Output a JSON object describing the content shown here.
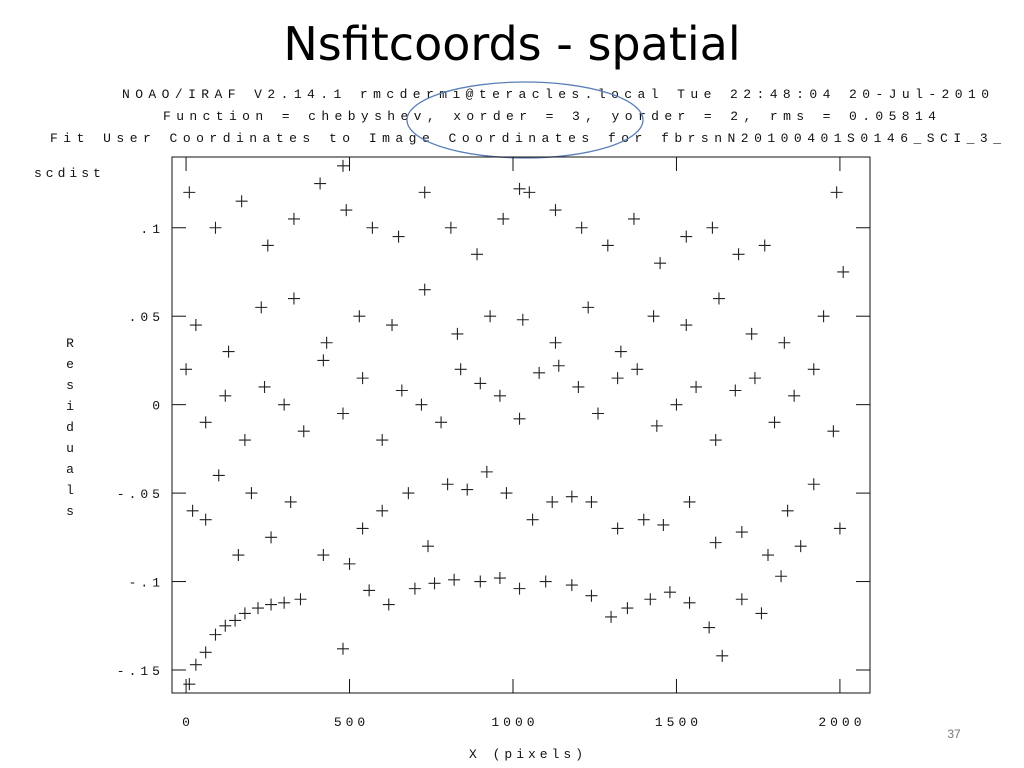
{
  "slide": {
    "title": "Nsfitcoords - spatial",
    "page_number": "37"
  },
  "chart_data": {
    "type": "scatter",
    "header_lines": [
      "NOAO/IRAF V2.14.1 rmcdermi@teracles.local Tue 22:48:04 20-Jul-2010",
      "Function = chebyshev, xorder = 3, yorder = 2, rms = 0.05814",
      "Fit User Coordinates to Image Coordinates for fbrsnN20100401S0146_SCI_3_"
    ],
    "y_axis_title": "scdist",
    "ylabel": "Residuals",
    "xlabel": "X (pixels)",
    "color": "#222222",
    "xlim": [
      -43,
      2092
    ],
    "ylim": [
      -0.163,
      0.14
    ],
    "xticks": [
      0,
      500,
      1000,
      1500,
      2000
    ],
    "yticks": [
      {
        "value": 0.1,
        "label": ".1"
      },
      {
        "value": 0.05,
        "label": ".05"
      },
      0,
      {
        "value": -0.05,
        "label": "-.05"
      },
      {
        "value": -0.1,
        "label": "-.1"
      },
      {
        "value": -0.15,
        "label": "-.15"
      }
    ],
    "x": [
      10,
      30,
      60,
      90,
      120,
      150,
      180,
      220,
      260,
      300,
      350,
      480,
      560,
      620,
      700,
      760,
      820,
      900,
      960,
      1020,
      1100,
      1180,
      1240,
      1300,
      1350,
      1420,
      1480,
      1540,
      1600,
      1640,
      1700,
      1760,
      1820,
      1880,
      20,
      60,
      100,
      160,
      200,
      260,
      320,
      420,
      500,
      540,
      600,
      680,
      740,
      800,
      860,
      920,
      980,
      1060,
      1120,
      1180,
      1240,
      1320,
      1400,
      1460,
      1540,
      1620,
      1700,
      1780,
      1840,
      1920,
      2000,
      0,
      60,
      120,
      180,
      240,
      300,
      360,
      420,
      480,
      540,
      600,
      660,
      720,
      780,
      840,
      900,
      960,
      1020,
      1080,
      1140,
      1200,
      1260,
      1320,
      1380,
      1440,
      1500,
      1560,
      1620,
      1680,
      1740,
      1800,
      1860,
      1920,
      1980,
      30,
      130,
      230,
      330,
      430,
      530,
      630,
      730,
      830,
      930,
      1030,
      1130,
      1230,
      1330,
      1430,
      1530,
      1630,
      1730,
      1830,
      1950,
      10,
      90,
      170,
      250,
      330,
      410,
      490,
      570,
      650,
      730,
      810,
      890,
      970,
      1050,
      1130,
      1210,
      1290,
      1370,
      1450,
      1530,
      1610,
      1690,
      1770,
      1990,
      2010,
      480,
      1020
    ],
    "values": [
      -0.158,
      -0.147,
      -0.14,
      -0.13,
      -0.125,
      -0.122,
      -0.118,
      -0.115,
      -0.113,
      -0.112,
      -0.11,
      -0.138,
      -0.105,
      -0.113,
      -0.104,
      -0.101,
      -0.099,
      -0.1,
      -0.098,
      -0.104,
      -0.1,
      -0.102,
      -0.108,
      -0.12,
      -0.115,
      -0.11,
      -0.106,
      -0.112,
      -0.126,
      -0.142,
      -0.11,
      -0.118,
      -0.097,
      -0.08,
      -0.06,
      -0.065,
      -0.04,
      -0.085,
      -0.05,
      -0.075,
      -0.055,
      -0.085,
      -0.09,
      -0.07,
      -0.06,
      -0.05,
      -0.08,
      -0.045,
      -0.048,
      -0.038,
      -0.05,
      -0.065,
      -0.055,
      -0.052,
      -0.055,
      -0.07,
      -0.065,
      -0.068,
      -0.055,
      -0.078,
      -0.072,
      -0.085,
      -0.06,
      -0.045,
      -0.07,
      0.02,
      -0.01,
      0.005,
      -0.02,
      0.01,
      0,
      -0.015,
      0.025,
      -0.005,
      0.015,
      -0.02,
      0.008,
      0,
      -0.01,
      0.02,
      0.012,
      0.005,
      -0.008,
      0.018,
      0.022,
      0.01,
      -0.005,
      0.015,
      0.02,
      -0.012,
      0,
      0.01,
      -0.02,
      0.008,
      0.015,
      -0.01,
      0.005,
      0.02,
      -0.015,
      0.045,
      0.03,
      0.055,
      0.06,
      0.035,
      0.05,
      0.045,
      0.065,
      0.04,
      0.05,
      0.048,
      0.035,
      0.055,
      0.03,
      0.05,
      0.045,
      0.06,
      0.04,
      0.035,
      0.05,
      0.12,
      0.1,
      0.115,
      0.09,
      0.105,
      0.125,
      0.11,
      0.1,
      0.095,
      0.12,
      0.1,
      0.085,
      0.105,
      0.12,
      0.11,
      0.1,
      0.09,
      0.105,
      0.08,
      0.095,
      0.1,
      0.085,
      0.09,
      0.12,
      0.075,
      0.135,
      0.122
    ]
  }
}
